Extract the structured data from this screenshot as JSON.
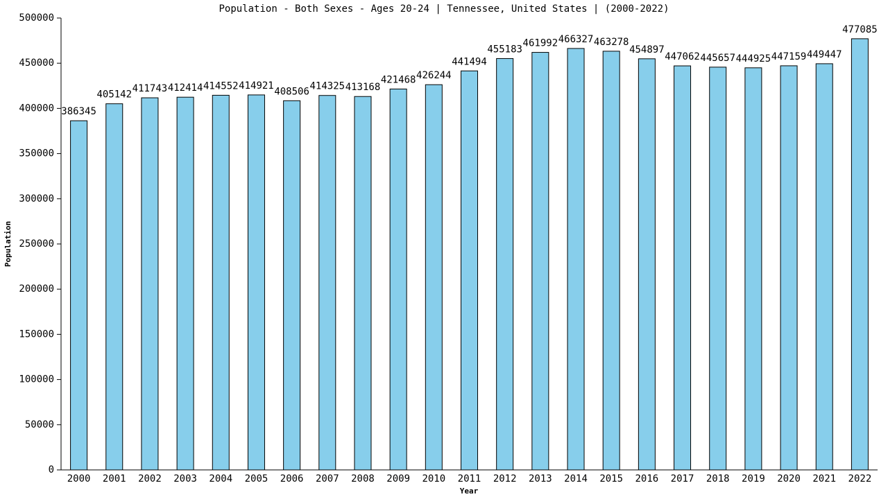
{
  "chart_data": {
    "type": "bar",
    "title": "Population - Both Sexes - Ages 20-24 | Tennessee, United States |  (2000-2022)",
    "x_label": "Year",
    "y_label": "Population",
    "categories": [
      "2000",
      "2001",
      "2002",
      "2003",
      "2004",
      "2005",
      "2006",
      "2007",
      "2008",
      "2009",
      "2010",
      "2011",
      "2012",
      "2013",
      "2014",
      "2015",
      "2016",
      "2017",
      "2018",
      "2019",
      "2020",
      "2021",
      "2022"
    ],
    "values": [
      386345,
      405142,
      411743,
      412414,
      414552,
      414921,
      408506,
      414325,
      413168,
      421468,
      426244,
      441494,
      455183,
      461992,
      466327,
      463278,
      454897,
      447062,
      445657,
      444925,
      447159,
      449447,
      477085
    ],
    "color": "#87ceeb",
    "ylim": [
      0,
      500000
    ],
    "yticks": [
      0,
      50000,
      100000,
      150000,
      200000,
      250000,
      300000,
      350000,
      400000,
      450000,
      500000
    ],
    "grid": false
  }
}
